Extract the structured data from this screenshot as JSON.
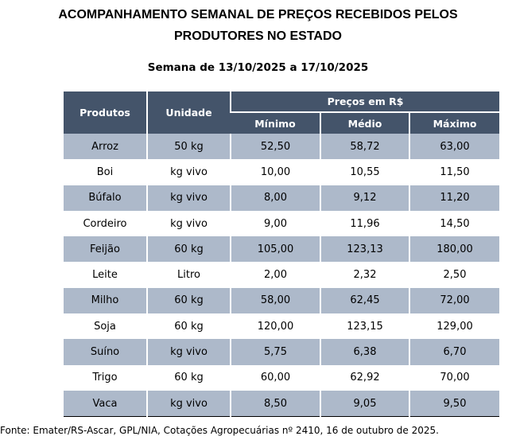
{
  "title_line1": "ACOMPANHAMENTO SEMANAL DE PREÇOS RECEBIDOS PELOS",
  "title_line2": "PRODUTORES NO ESTADO",
  "week": "Semana de 13/10/2025 a 17/10/2025",
  "table": {
    "headers": {
      "product": "Produtos",
      "unit": "Unidade",
      "prices": "Preços em R$",
      "min": "Mínimo",
      "avg": "Médio",
      "max": "Máximo"
    },
    "rows": [
      [
        "Arroz",
        "50 kg",
        "52,50",
        "58,72",
        "63,00"
      ],
      [
        "Boi",
        "kg vivo",
        "10,00",
        "10,55",
        "11,50"
      ],
      [
        "Búfalo",
        "kg vivo",
        "8,00",
        "9,12",
        "11,20"
      ],
      [
        "Cordeiro",
        "kg vivo",
        "9,00",
        "11,96",
        "14,50"
      ],
      [
        "Feijão",
        "60 kg",
        "105,00",
        "123,13",
        "180,00"
      ],
      [
        "Leite",
        "Litro",
        "2,00",
        "2,32",
        "2,50"
      ],
      [
        "Milho",
        "60 kg",
        "58,00",
        "62,45",
        "72,00"
      ],
      [
        "Soja",
        "60 kg",
        "120,00",
        "123,15",
        "129,00"
      ],
      [
        "Suíno",
        "kg vivo",
        "5,75",
        "6,38",
        "6,70"
      ],
      [
        "Trigo",
        "60 kg",
        "60,00",
        "62,92",
        "70,00"
      ],
      [
        "Vaca",
        "kg vivo",
        "8,50",
        "9,05",
        "9,50"
      ]
    ]
  },
  "source": "Fonte: Emater/RS-Ascar, GPL/NIA, Cotações Agropecuárias nº 2410, 16 de outubro de 2025.",
  "colors": {
    "header": "#44546a",
    "shade": "#adb9ca"
  }
}
